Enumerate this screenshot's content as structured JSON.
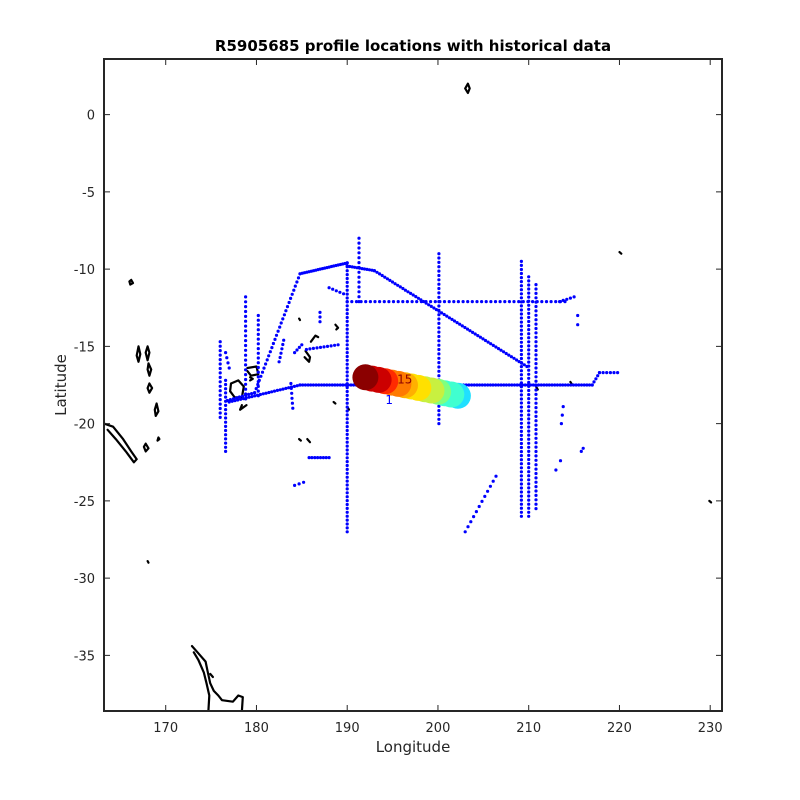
{
  "chart_data": {
    "type": "scatter",
    "title": "R5905685 profile locations with historical data",
    "xlabel": "Longitude",
    "ylabel": "Latitude",
    "xlim": [
      163.2,
      231.3
    ],
    "ylim": [
      -38.6,
      3.6
    ],
    "xticks": [
      170,
      180,
      190,
      200,
      210,
      220,
      230
    ],
    "xtick_labels": [
      "170",
      "180",
      "190",
      "200",
      "210",
      "220",
      "230"
    ],
    "yticks": [
      0,
      -5,
      -10,
      -15,
      -20,
      -25,
      -30,
      -35
    ],
    "ytick_labels": [
      "0",
      "-5",
      "-10",
      "-15",
      "-20",
      "-25",
      "-30",
      "-35"
    ],
    "grid": false,
    "legend": "none",
    "colors": {
      "historical": "#0000ff",
      "coastline": "#000000",
      "profile_colormap": [
        "#8b0000",
        "#cc0000",
        "#ff2a00",
        "#ff7a00",
        "#ffb000",
        "#ffe000",
        "#c8f040",
        "#7fff7f",
        "#40ffd0",
        "#20e0ff"
      ]
    },
    "profile_labels": [
      "15",
      "1"
    ],
    "historical_tracks": [
      {
        "from": [
          184.8,
          -10.3
        ],
        "to": [
          190.0,
          -9.6
        ],
        "n": 22
      },
      {
        "from": [
          190.0,
          -9.8
        ],
        "to": [
          193.0,
          -10.1
        ],
        "n": 12
      },
      {
        "from": [
          193.0,
          -10.1
        ],
        "to": [
          209.8,
          -16.3
        ],
        "n": 60
      },
      {
        "from": [
          190.0,
          -12.1
        ],
        "to": [
          214.0,
          -12.1
        ],
        "n": 48
      },
      {
        "from": [
          190.0,
          -9.6
        ],
        "to": [
          190.0,
          -27.0
        ],
        "n": 70
      },
      {
        "from": [
          191.3,
          -8.0
        ],
        "to": [
          191.3,
          -12.1
        ],
        "n": 14
      },
      {
        "from": [
          200.1,
          -9.0
        ],
        "to": [
          200.1,
          -20.0
        ],
        "n": 40
      },
      {
        "from": [
          209.2,
          -9.5
        ],
        "to": [
          209.2,
          -26.0
        ],
        "n": 64
      },
      {
        "from": [
          210.0,
          -10.5
        ],
        "to": [
          210.0,
          -26.0
        ],
        "n": 60
      },
      {
        "from": [
          210.8,
          -11.0
        ],
        "to": [
          210.8,
          -25.5
        ],
        "n": 52
      },
      {
        "from": [
          184.8,
          -17.5
        ],
        "to": [
          217.0,
          -17.5
        ],
        "n": 110
      },
      {
        "from": [
          217.0,
          -17.5
        ],
        "to": [
          217.8,
          -16.7
        ],
        "n": 5
      },
      {
        "from": [
          217.8,
          -16.7
        ],
        "to": [
          219.8,
          -16.7
        ],
        "n": 6
      },
      {
        "from": [
          184.8,
          -10.3
        ],
        "to": [
          179.8,
          -18.0
        ],
        "n": 30
      },
      {
        "from": [
          179.8,
          -18.0
        ],
        "to": [
          176.8,
          -18.5
        ],
        "n": 10
      },
      {
        "from": [
          184.8,
          -17.5
        ],
        "to": [
          177.0,
          -18.6
        ],
        "n": 26
      },
      {
        "from": [
          176.6,
          -17.2
        ],
        "to": [
          176.6,
          -21.8
        ],
        "n": 18
      },
      {
        "from": [
          178.8,
          -11.8
        ],
        "to": [
          178.8,
          -18.4
        ],
        "n": 22
      },
      {
        "from": [
          180.2,
          -13.0
        ],
        "to": [
          180.2,
          -18.2
        ],
        "n": 18
      },
      {
        "from": [
          176.6,
          -15.4
        ],
        "to": [
          177.0,
          -16.4
        ],
        "n": 4
      },
      {
        "from": [
          176.0,
          -14.7
        ],
        "to": [
          176.0,
          -19.6
        ],
        "n": 18
      },
      {
        "from": [
          182.5,
          -16.0
        ],
        "to": [
          183.0,
          -14.6
        ],
        "n": 6
      },
      {
        "from": [
          184.2,
          -15.4
        ],
        "to": [
          185.0,
          -14.9
        ],
        "n": 4
      },
      {
        "from": [
          185.5,
          -15.2
        ],
        "to": [
          189.0,
          -14.9
        ],
        "n": 10
      },
      {
        "from": [
          183.8,
          -17.4
        ],
        "to": [
          184.0,
          -19.0
        ],
        "n": 6
      },
      {
        "from": [
          185.8,
          -22.2
        ],
        "to": [
          188.0,
          -22.2
        ],
        "n": 8
      },
      {
        "from": [
          184.2,
          -24.0
        ],
        "to": [
          185.2,
          -23.8
        ],
        "n": 3
      },
      {
        "from": [
          187.0,
          -12.8
        ],
        "to": [
          187.0,
          -13.4
        ],
        "n": 3
      },
      {
        "from": [
          188.0,
          -11.2
        ],
        "to": [
          189.6,
          -11.6
        ],
        "n": 5
      },
      {
        "from": [
          203.0,
          -27.0
        ],
        "to": [
          206.4,
          -23.4
        ],
        "n": 12
      },
      {
        "from": [
          213.4,
          -12.1
        ],
        "to": [
          215.0,
          -11.8
        ],
        "n": 5
      },
      {
        "from": [
          213.0,
          -23.0
        ],
        "to": [
          213.5,
          -22.4
        ],
        "n": 2
      },
      {
        "from": [
          215.4,
          -13.0
        ],
        "to": [
          215.4,
          -13.6
        ],
        "n": 2
      },
      {
        "from": [
          215.8,
          -21.8
        ],
        "to": [
          216.0,
          -21.6
        ],
        "n": 2
      },
      {
        "from": [
          213.6,
          -20.0
        ],
        "to": [
          213.8,
          -18.9
        ],
        "n": 3
      }
    ],
    "profiles": {
      "lon_start": 202.2,
      "lon_end": 192.0,
      "lat_start": -18.2,
      "lat_end": -17.0,
      "count": 15
    },
    "coastlines": [
      [
        [
          166.2,
          -10.7
        ],
        [
          166.4,
          -10.9
        ],
        [
          166.1,
          -11.0
        ],
        [
          166.0,
          -10.8
        ],
        [
          166.2,
          -10.7
        ]
      ],
      [
        [
          163.2,
          -20.0
        ],
        [
          164.2,
          -20.2
        ],
        [
          165.3,
          -21.0
        ],
        [
          166.2,
          -21.8
        ],
        [
          166.8,
          -22.3
        ],
        [
          166.5,
          -22.5
        ],
        [
          165.6,
          -21.8
        ],
        [
          164.5,
          -21.0
        ],
        [
          163.6,
          -20.4
        ]
      ],
      [
        [
          167.0,
          -15.0
        ],
        [
          167.2,
          -15.5
        ],
        [
          167.0,
          -16.0
        ],
        [
          166.8,
          -15.6
        ],
        [
          167.0,
          -15.0
        ]
      ],
      [
        [
          168.0,
          -15.0
        ],
        [
          168.2,
          -15.4
        ],
        [
          168.0,
          -15.9
        ],
        [
          167.8,
          -15.4
        ],
        [
          168.0,
          -15.0
        ]
      ],
      [
        [
          168.1,
          -16.1
        ],
        [
          168.4,
          -16.5
        ],
        [
          168.2,
          -16.9
        ],
        [
          168.0,
          -16.5
        ],
        [
          168.1,
          -16.1
        ]
      ],
      [
        [
          168.2,
          -17.4
        ],
        [
          168.5,
          -17.7
        ],
        [
          168.2,
          -18.0
        ],
        [
          168.0,
          -17.7
        ],
        [
          168.2,
          -17.4
        ]
      ],
      [
        [
          169.0,
          -18.7
        ],
        [
          169.2,
          -19.2
        ],
        [
          168.9,
          -19.5
        ],
        [
          168.8,
          -19.1
        ],
        [
          169.0,
          -18.7
        ]
      ],
      [
        [
          167.8,
          -21.3
        ],
        [
          168.1,
          -21.6
        ],
        [
          167.8,
          -21.8
        ],
        [
          167.6,
          -21.5
        ],
        [
          167.8,
          -21.3
        ]
      ],
      [
        [
          169.2,
          -20.9
        ],
        [
          169.3,
          -21.0
        ],
        [
          169.1,
          -21.1
        ],
        [
          169.2,
          -20.9
        ]
      ],
      [
        [
          177.2,
          -17.4
        ],
        [
          178.0,
          -17.2
        ],
        [
          178.6,
          -17.6
        ],
        [
          178.4,
          -18.3
        ],
        [
          177.6,
          -18.3
        ],
        [
          177.1,
          -17.9
        ],
        [
          177.2,
          -17.4
        ]
      ],
      [
        [
          179.0,
          -16.4
        ],
        [
          180.0,
          -16.3
        ],
        [
          180.2,
          -16.8
        ],
        [
          179.4,
          -16.9
        ],
        [
          179.0,
          -16.6
        ]
      ],
      [
        [
          178.9,
          -18.8
        ],
        [
          178.2,
          -19.1
        ],
        [
          178.4,
          -18.8
        ]
      ],
      [
        [
          179.3,
          -17.0
        ],
        [
          179.6,
          -17.1
        ],
        [
          179.3,
          -17.2
        ]
      ],
      [
        [
          185.4,
          -15.3
        ],
        [
          185.9,
          -15.7
        ],
        [
          185.8,
          -16.0
        ],
        [
          185.3,
          -15.7
        ]
      ],
      [
        [
          186.0,
          -14.7
        ],
        [
          186.5,
          -14.3
        ],
        [
          186.8,
          -14.4
        ]
      ],
      [
        [
          188.7,
          -13.6
        ],
        [
          189.0,
          -13.8
        ],
        [
          188.8,
          -13.9
        ]
      ],
      [
        [
          185.6,
          -21.0
        ],
        [
          185.9,
          -21.2
        ]
      ],
      [
        [
          184.7,
          -21.0
        ],
        [
          184.9,
          -21.1
        ]
      ],
      [
        [
          184.7,
          -13.2
        ],
        [
          184.8,
          -13.3
        ]
      ],
      [
        [
          190.0,
          -18.9
        ],
        [
          190.2,
          -19.1
        ]
      ],
      [
        [
          188.5,
          -18.6
        ],
        [
          188.7,
          -18.7
        ]
      ],
      [
        [
          203.0,
          1.7
        ],
        [
          203.3,
          2.0
        ],
        [
          203.5,
          1.7
        ],
        [
          203.3,
          1.4
        ],
        [
          203.0,
          1.7
        ]
      ],
      [
        [
          210.8,
          -17.6
        ],
        [
          211.0,
          -17.8
        ]
      ],
      [
        [
          214.6,
          -17.3
        ],
        [
          214.8,
          -17.5
        ]
      ],
      [
        [
          220.0,
          -8.9
        ],
        [
          220.2,
          -9.0
        ]
      ],
      [
        [
          230.1,
          -25.1
        ],
        [
          229.9,
          -25.0
        ]
      ],
      [
        [
          168.0,
          -28.9
        ],
        [
          168.1,
          -29.0
        ]
      ],
      [
        [
          172.9,
          -34.4
        ],
        [
          173.5,
          -34.8
        ],
        [
          174.4,
          -35.4
        ],
        [
          174.6,
          -36.0
        ],
        [
          174.9,
          -36.8
        ],
        [
          175.3,
          -37.3
        ],
        [
          175.8,
          -37.6
        ],
        [
          176.2,
          -37.9
        ],
        [
          177.4,
          -38.0
        ],
        [
          178.0,
          -37.6
        ],
        [
          178.5,
          -37.7
        ],
        [
          178.4,
          -38.6
        ]
      ],
      [
        [
          173.1,
          -34.8
        ],
        [
          173.6,
          -35.3
        ],
        [
          174.2,
          -36.1
        ],
        [
          174.5,
          -36.8
        ],
        [
          174.8,
          -37.6
        ],
        [
          174.7,
          -38.6
        ]
      ],
      [
        [
          174.9,
          -36.2
        ],
        [
          175.2,
          -36.4
        ]
      ]
    ]
  }
}
